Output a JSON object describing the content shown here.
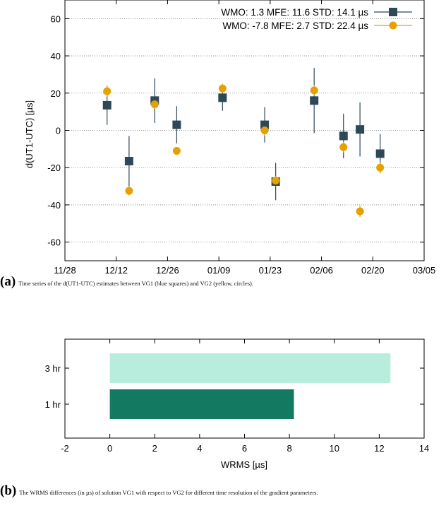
{
  "figure_a": {
    "caption_label": "(a)",
    "caption_text": "Time series of the d(UT1-UTC) estimates between VG1 (blue squares) and VG2 (yellow, circles)."
  },
  "figure_b": {
    "caption_label": "(b)",
    "caption_text": "The WRMS differences (in µs) of solution VG1 with respect to VG2 for different time resolution of the gradient parameters."
  },
  "chart_data": [
    {
      "type": "scatter",
      "ylabel": "d(UT1-UTC) [µs]",
      "xlabel": "",
      "xlim": [
        0,
        98
      ],
      "ylim": [
        -70,
        70
      ],
      "x_ticks": [
        {
          "pos": 0,
          "label": "11/28"
        },
        {
          "pos": 14,
          "label": "12/12"
        },
        {
          "pos": 28,
          "label": "12/26"
        },
        {
          "pos": 42,
          "label": "01/09"
        },
        {
          "pos": 56,
          "label": "01/23"
        },
        {
          "pos": 70,
          "label": "02/06"
        },
        {
          "pos": 84,
          "label": "02/20"
        },
        {
          "pos": 98,
          "label": "03/05"
        }
      ],
      "y_ticks": [
        -60,
        -40,
        -20,
        0,
        20,
        40,
        60
      ],
      "grid": "horizontal-dotted",
      "legend_position": "top-right",
      "series": [
        {
          "name": "WMO: 1.3 MFE: 11.6 STD: 14.1 µs",
          "color": "#2f4858",
          "marker": "square",
          "points": [
            {
              "x": 11.5,
              "y": 13.5,
              "err": 10.5
            },
            {
              "x": 17.5,
              "y": -16.5,
              "err": 13.5
            },
            {
              "x": 24.5,
              "y": 16,
              "err": 12
            },
            {
              "x": 30.5,
              "y": 3,
              "err": 10
            },
            {
              "x": 43,
              "y": 17.5,
              "err": 7
            },
            {
              "x": 54.5,
              "y": 3,
              "err": 9.5
            },
            {
              "x": 57.5,
              "y": -27.5,
              "err": 10
            },
            {
              "x": 68,
              "y": 16,
              "err": 17.5
            },
            {
              "x": 76,
              "y": -3,
              "err": 12
            },
            {
              "x": 80.5,
              "y": 0.5,
              "err": 14.5
            },
            {
              "x": 86,
              "y": -12.5,
              "err": 10.5
            }
          ]
        },
        {
          "name": "WMO: -7.8 MFE: 2.7 STD: 22.4 µs",
          "color": "#e8a000",
          "marker": "circle",
          "points": [
            {
              "x": 11.5,
              "y": 21,
              "err": 3
            },
            {
              "x": 17.5,
              "y": -32.5,
              "err": 2.5
            },
            {
              "x": 24.5,
              "y": 14,
              "err": 2.5
            },
            {
              "x": 30.5,
              "y": -11,
              "err": 2
            },
            {
              "x": 43,
              "y": 22.5,
              "err": 2.5
            },
            {
              "x": 54.5,
              "y": 0,
              "err": 3
            },
            {
              "x": 57.5,
              "y": -27,
              "err": 2.5
            },
            {
              "x": 68,
              "y": 21.5,
              "err": 3
            },
            {
              "x": 76,
              "y": -9,
              "err": 3
            },
            {
              "x": 80.5,
              "y": -43.5,
              "err": 3
            },
            {
              "x": 86,
              "y": -20,
              "err": 3
            }
          ]
        }
      ]
    },
    {
      "type": "bar",
      "orientation": "horizontal",
      "categories": [
        "3 hr",
        "1 hr"
      ],
      "values": [
        12.5,
        8.2
      ],
      "colors": [
        "#b8ecdc",
        "#137a61"
      ],
      "xlabel": "WRMS [µs]",
      "ylabel": "",
      "xlim": [
        -2,
        14
      ],
      "x_ticks": [
        -2,
        0,
        2,
        4,
        6,
        8,
        10,
        12,
        14
      ],
      "grid": false
    }
  ]
}
